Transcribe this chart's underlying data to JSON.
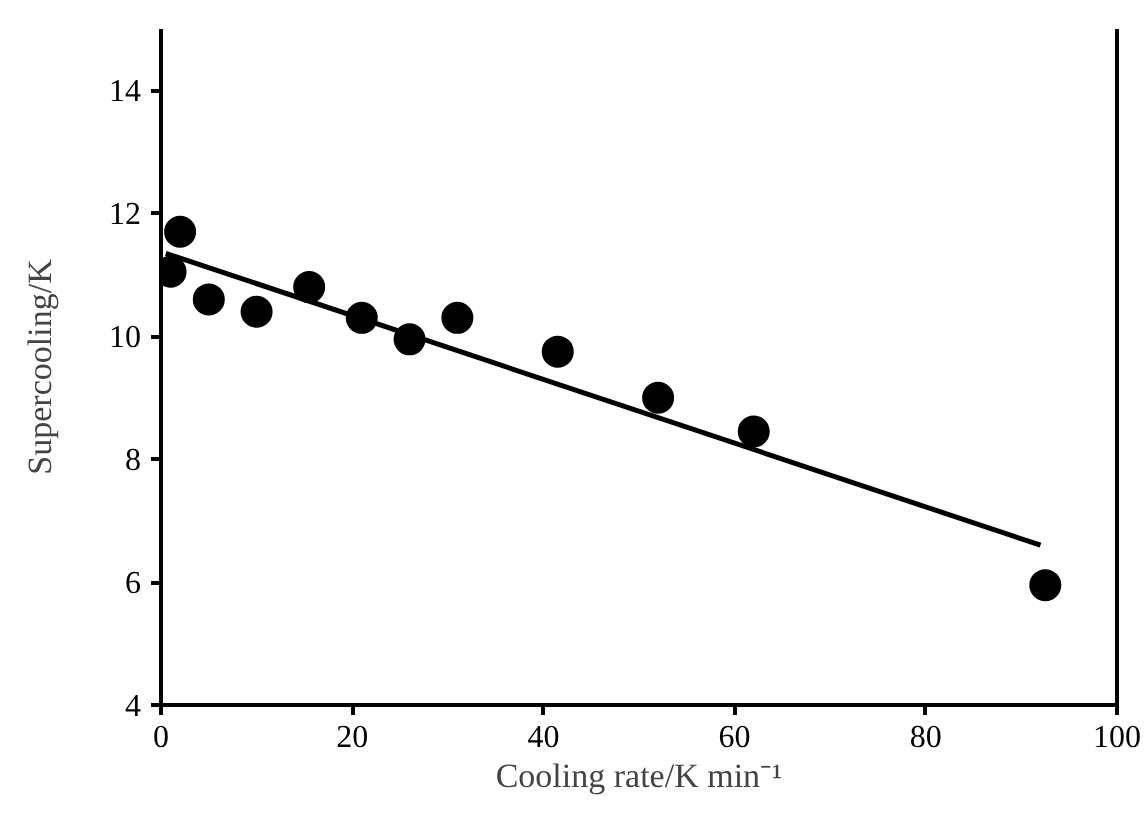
{
  "chart_data": {
    "type": "scatter",
    "xlabel": "Cooling rate/K min⁻¹",
    "ylabel": "Supercooling/K",
    "xlim": [
      0,
      100
    ],
    "ylim": [
      4,
      15
    ],
    "xticks": [
      0,
      20,
      40,
      60,
      80,
      100
    ],
    "yticks": [
      4,
      6,
      8,
      10,
      12,
      14
    ],
    "grid": false,
    "marker": "circle",
    "series": [
      {
        "color": "#000000",
        "x": [
          1,
          2,
          5,
          10,
          15.5,
          21,
          26,
          31,
          41.5,
          52,
          62,
          92.5
        ],
        "values": [
          11.05,
          11.7,
          10.6,
          10.4,
          10.8,
          10.3,
          9.95,
          10.3,
          9.75,
          9.0,
          8.45,
          5.95
        ]
      },
      {
        "type": "line",
        "color": "#000000",
        "marker": "none",
        "line_style": "solid",
        "x": [
          0.5,
          92
        ],
        "values": [
          11.35,
          6.6
        ]
      }
    ]
  }
}
